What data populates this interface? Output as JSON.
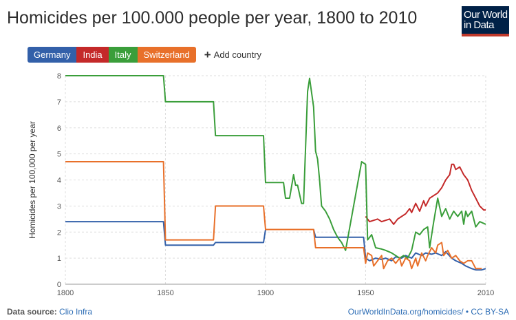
{
  "header": {
    "title": "Homicides per 100.000 people per year, 1800 to 2010",
    "logo_line1": "Our World",
    "logo_line2": "in Data"
  },
  "legend": {
    "add_country_label": "Add country"
  },
  "footer": {
    "source_label": "Data source:",
    "source_link": "Clio Infra",
    "url": "OurWorldInData.org/homicides/",
    "separator": " • ",
    "license": "CC BY-SA"
  },
  "chart_data": {
    "type": "line",
    "title": "Homicides per 100.000 people per year, 1800 to 2010",
    "xlabel": "",
    "ylabel": "Homicides per 100,000 per year",
    "xlim": [
      1800,
      2010
    ],
    "ylim": [
      0,
      8
    ],
    "x_ticks": [
      1800,
      1850,
      1900,
      1950,
      2010
    ],
    "y_ticks": [
      0,
      1,
      2,
      3,
      4,
      5,
      6,
      7,
      8
    ],
    "grid": true,
    "series": [
      {
        "name": "Germany",
        "color": "#3360a9",
        "points": [
          [
            1800,
            2.4
          ],
          [
            1849,
            2.4
          ],
          [
            1850,
            1.5
          ],
          [
            1874,
            1.5
          ],
          [
            1875,
            1.6
          ],
          [
            1899,
            1.6
          ],
          [
            1900,
            2.1
          ],
          [
            1924,
            2.1
          ],
          [
            1925,
            1.8
          ],
          [
            1949,
            1.8
          ],
          [
            1950,
            1.0
          ],
          [
            1952,
            0.9
          ],
          [
            1955,
            1.0
          ],
          [
            1958,
            0.95
          ],
          [
            1960,
            1.0
          ],
          [
            1963,
            0.9
          ],
          [
            1965,
            1.05
          ],
          [
            1968,
            1.0
          ],
          [
            1970,
            1.1
          ],
          [
            1973,
            1.0
          ],
          [
            1975,
            1.2
          ],
          [
            1978,
            1.1
          ],
          [
            1980,
            1.2
          ],
          [
            1983,
            1.15
          ],
          [
            1985,
            1.2
          ],
          [
            1988,
            1.1
          ],
          [
            1990,
            1.25
          ],
          [
            1993,
            1.0
          ],
          [
            1995,
            0.9
          ],
          [
            1998,
            0.8
          ],
          [
            2000,
            0.7
          ],
          [
            2003,
            0.6
          ],
          [
            2005,
            0.55
          ],
          [
            2008,
            0.55
          ],
          [
            2010,
            0.6
          ]
        ]
      },
      {
        "name": "India",
        "color": "#c42929",
        "points": [
          [
            1950,
            2.6
          ],
          [
            1952,
            2.4
          ],
          [
            1954,
            2.45
          ],
          [
            1956,
            2.5
          ],
          [
            1958,
            2.4
          ],
          [
            1960,
            2.45
          ],
          [
            1962,
            2.5
          ],
          [
            1964,
            2.3
          ],
          [
            1966,
            2.5
          ],
          [
            1968,
            2.6
          ],
          [
            1970,
            2.7
          ],
          [
            1972,
            2.9
          ],
          [
            1973,
            2.75
          ],
          [
            1975,
            3.1
          ],
          [
            1977,
            2.8
          ],
          [
            1979,
            3.2
          ],
          [
            1980,
            3.0
          ],
          [
            1982,
            3.3
          ],
          [
            1984,
            3.4
          ],
          [
            1986,
            3.5
          ],
          [
            1988,
            3.7
          ],
          [
            1990,
            4.0
          ],
          [
            1992,
            4.2
          ],
          [
            1993,
            4.6
          ],
          [
            1994,
            4.6
          ],
          [
            1995,
            4.4
          ],
          [
            1997,
            4.5
          ],
          [
            1999,
            4.2
          ],
          [
            2001,
            4.0
          ],
          [
            2003,
            3.6
          ],
          [
            2005,
            3.3
          ],
          [
            2007,
            3.0
          ],
          [
            2009,
            2.85
          ],
          [
            2010,
            2.85
          ]
        ]
      },
      {
        "name": "Italy",
        "color": "#3a9e3a",
        "points": [
          [
            1800,
            8.0
          ],
          [
            1849,
            8.0
          ],
          [
            1850,
            7.0
          ],
          [
            1874,
            7.0
          ],
          [
            1875,
            5.7
          ],
          [
            1899,
            5.7
          ],
          [
            1900,
            3.9
          ],
          [
            1909,
            3.9
          ],
          [
            1910,
            3.3
          ],
          [
            1912,
            3.3
          ],
          [
            1914,
            4.2
          ],
          [
            1915,
            3.8
          ],
          [
            1916,
            3.8
          ],
          [
            1918,
            3.1
          ],
          [
            1919,
            3.1
          ],
          [
            1921,
            7.4
          ],
          [
            1922,
            7.9
          ],
          [
            1924,
            6.8
          ],
          [
            1925,
            5.1
          ],
          [
            1926,
            4.8
          ],
          [
            1927,
            4.0
          ],
          [
            1928,
            3.0
          ],
          [
            1930,
            2.8
          ],
          [
            1932,
            2.5
          ],
          [
            1934,
            2.1
          ],
          [
            1936,
            1.8
          ],
          [
            1938,
            1.6
          ],
          [
            1940,
            1.3
          ],
          [
            1948,
            4.7
          ],
          [
            1950,
            4.6
          ],
          [
            1951,
            1.7
          ],
          [
            1953,
            1.9
          ],
          [
            1955,
            1.4
          ],
          [
            1958,
            1.35
          ],
          [
            1960,
            1.3
          ],
          [
            1963,
            1.2
          ],
          [
            1965,
            1.1
          ],
          [
            1967,
            1.0
          ],
          [
            1969,
            1.1
          ],
          [
            1971,
            1.0
          ],
          [
            1973,
            1.3
          ],
          [
            1975,
            2.0
          ],
          [
            1977,
            1.9
          ],
          [
            1979,
            2.1
          ],
          [
            1981,
            2.2
          ],
          [
            1982,
            1.4
          ],
          [
            1984,
            2.4
          ],
          [
            1986,
            3.3
          ],
          [
            1988,
            2.6
          ],
          [
            1990,
            2.9
          ],
          [
            1992,
            2.5
          ],
          [
            1994,
            2.8
          ],
          [
            1996,
            2.6
          ],
          [
            1998,
            2.8
          ],
          [
            1999,
            2.3
          ],
          [
            2000,
            2.8
          ],
          [
            2001,
            2.6
          ],
          [
            2003,
            2.8
          ],
          [
            2005,
            2.2
          ],
          [
            2007,
            2.4
          ],
          [
            2010,
            2.3
          ]
        ]
      },
      {
        "name": "Switzerland",
        "color": "#e8702a",
        "points": [
          [
            1800,
            4.7
          ],
          [
            1849,
            4.7
          ],
          [
            1850,
            1.7
          ],
          [
            1874,
            1.7
          ],
          [
            1875,
            3.0
          ],
          [
            1899,
            3.0
          ],
          [
            1900,
            2.1
          ],
          [
            1924,
            2.1
          ],
          [
            1925,
            1.4
          ],
          [
            1949,
            1.4
          ],
          [
            1950,
            0.8
          ],
          [
            1951,
            1.2
          ],
          [
            1953,
            1.1
          ],
          [
            1954,
            0.7
          ],
          [
            1956,
            0.9
          ],
          [
            1958,
            1.1
          ],
          [
            1959,
            0.6
          ],
          [
            1961,
            0.9
          ],
          [
            1963,
            1.0
          ],
          [
            1965,
            0.8
          ],
          [
            1967,
            1.0
          ],
          [
            1968,
            0.7
          ],
          [
            1970,
            1.0
          ],
          [
            1972,
            0.9
          ],
          [
            1973,
            0.6
          ],
          [
            1975,
            1.0
          ],
          [
            1976,
            0.7
          ],
          [
            1978,
            1.2
          ],
          [
            1980,
            0.9
          ],
          [
            1981,
            1.1
          ],
          [
            1983,
            1.4
          ],
          [
            1985,
            1.2
          ],
          [
            1986,
            1.5
          ],
          [
            1988,
            1.6
          ],
          [
            1989,
            1.1
          ],
          [
            1991,
            1.3
          ],
          [
            1993,
            1.0
          ],
          [
            1995,
            1.1
          ],
          [
            1997,
            0.9
          ],
          [
            1999,
            0.8
          ],
          [
            2001,
            0.9
          ],
          [
            2003,
            0.9
          ],
          [
            2005,
            0.6
          ],
          [
            2008,
            0.6
          ]
        ]
      }
    ]
  }
}
